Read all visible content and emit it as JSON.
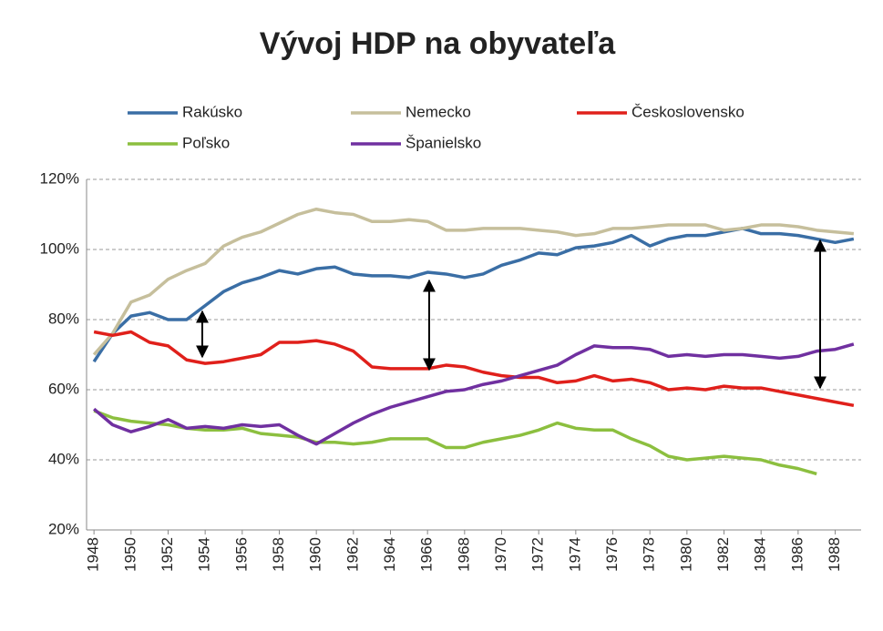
{
  "chart_data": {
    "type": "line",
    "title": "Vývoj HDP na obyvateľa",
    "x": [
      1948,
      1949,
      1950,
      1951,
      1952,
      1953,
      1954,
      1955,
      1956,
      1957,
      1958,
      1959,
      1960,
      1961,
      1962,
      1963,
      1964,
      1965,
      1966,
      1967,
      1968,
      1969,
      1970,
      1971,
      1972,
      1973,
      1974,
      1975,
      1976,
      1977,
      1978,
      1979,
      1980,
      1981,
      1982,
      1983,
      1984,
      1985,
      1986,
      1987,
      1988,
      1989
    ],
    "series": [
      {
        "name": "Rakúsko",
        "color": "#3a6ea5",
        "values": [
          68,
          76,
          81,
          82,
          80,
          80,
          84,
          88,
          90.5,
          92,
          94,
          93,
          94.5,
          95,
          93,
          92.5,
          92.5,
          92,
          93.5,
          93,
          92,
          93,
          95.5,
          97,
          99,
          98.5,
          100.5,
          101,
          102,
          104,
          101,
          103,
          104,
          104,
          105,
          106,
          104.5,
          104.5,
          104,
          103,
          102,
          103
        ]
      },
      {
        "name": "Nemecko",
        "color": "#c6bf9c",
        "values": [
          70,
          76,
          85,
          87,
          91.5,
          94,
          96,
          101,
          103.5,
          105,
          107.5,
          110,
          111.5,
          110.5,
          110,
          108,
          108,
          108.5,
          108,
          105.5,
          105.5,
          106,
          106,
          106,
          105.5,
          105,
          104,
          104.5,
          106,
          106,
          106.5,
          107,
          107,
          107,
          105.5,
          106,
          107,
          107,
          106.5,
          105.5,
          105,
          104.5
        ]
      },
      {
        "name": "Československo",
        "color": "#e0201b",
        "values": [
          76.5,
          75.5,
          76.5,
          73.5,
          72.5,
          68.5,
          67.5,
          68,
          69,
          70,
          73.5,
          73.5,
          74,
          73,
          71,
          66.5,
          66,
          66,
          66,
          67,
          66.5,
          65,
          64,
          63.5,
          63.5,
          62,
          62.5,
          64,
          62.5,
          63,
          62,
          60,
          60.5,
          60,
          61,
          60.5,
          60.5,
          59.5,
          58.5,
          57.5,
          56.5,
          55.5
        ]
      },
      {
        "name": "Poľsko",
        "color": "#8cbf3f",
        "values": [
          54,
          52,
          51,
          50.5,
          50,
          49,
          48.5,
          48.5,
          49,
          47.5,
          47,
          46.5,
          45,
          45,
          44.5,
          45,
          46,
          46,
          46,
          43.5,
          43.5,
          45,
          46,
          47,
          48.5,
          50.5,
          49,
          48.5,
          48.5,
          46,
          44,
          41,
          40,
          40.5,
          41,
          40.5,
          40,
          38.5,
          37.5,
          36,
          null,
          null
        ]
      },
      {
        "name": "Španielsko",
        "color": "#7030a0",
        "values": [
          54.5,
          50,
          48,
          49.5,
          51.5,
          49,
          49.5,
          49,
          50,
          49.5,
          50,
          47,
          44.5,
          47.5,
          50.5,
          53,
          55,
          56.5,
          58,
          59.5,
          60,
          61.5,
          62.5,
          64,
          65.5,
          67,
          70,
          72.5,
          72,
          72,
          71.5,
          69.5,
          70,
          69.5,
          70,
          70,
          69.5,
          69,
          69.5,
          71,
          71.5,
          73
        ]
      }
    ],
    "xlim": [
      1947.6,
      1989.4
    ],
    "xticks": [
      1948,
      1950,
      1952,
      1954,
      1956,
      1958,
      1960,
      1962,
      1964,
      1966,
      1968,
      1970,
      1972,
      1974,
      1976,
      1978,
      1980,
      1982,
      1984,
      1986,
      1988
    ],
    "ylim": [
      20,
      120
    ],
    "yticks": [
      {
        "value": 20,
        "label": "20%"
      },
      {
        "value": 40,
        "label": "40%"
      },
      {
        "value": 60,
        "label": "60%"
      },
      {
        "value": 80,
        "label": "80%"
      },
      {
        "value": 100,
        "label": "100%"
      },
      {
        "value": 120,
        "label": "120%"
      }
    ],
    "grid": true
  }
}
